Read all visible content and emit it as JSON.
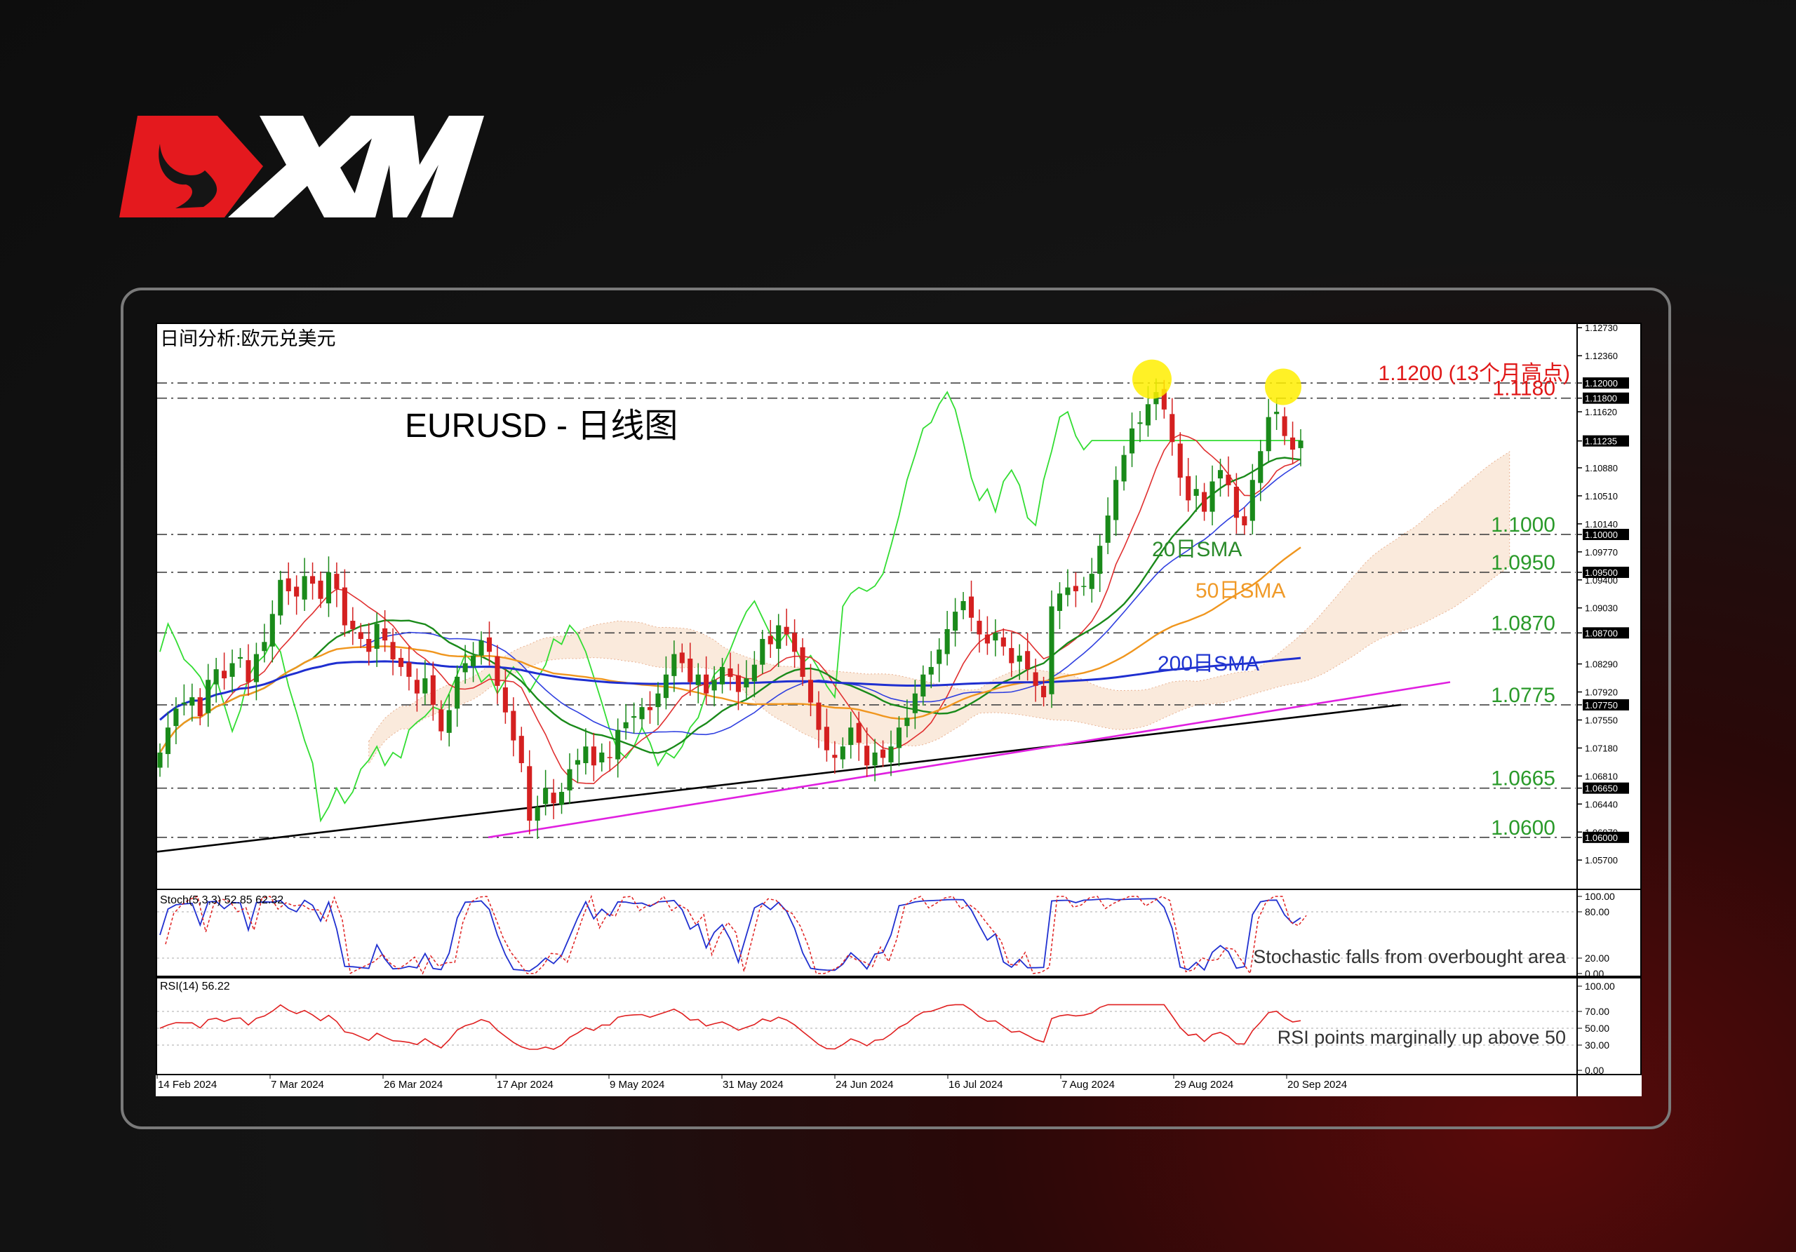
{
  "brand": {
    "name": "XM"
  },
  "chart_header": "日间分析:欧元兑美元",
  "chart_title": "EURUSD - 日线图",
  "colors": {
    "bull": "#1a8a1a",
    "bear": "#d42020",
    "sma20": "#1a8a1a",
    "sma50": "#f0961e",
    "sma200": "#1f2fd0",
    "tenkan": "#e03030",
    "kijun": "#3040e0",
    "chikou": "#33dd33",
    "trend_black": "#000000",
    "trend_magenta": "#e020e0",
    "highlight": "#ffee00"
  },
  "chart_data": [
    {
      "type": "candlestick",
      "symbol": "EURUSD",
      "timeframe": "Daily",
      "x_axis_ticks": [
        "14 Feb 2024",
        "7 Mar 2024",
        "26 Mar 2024",
        "17 Apr 2024",
        "9 May 2024",
        "31 May 2024",
        "24 Jun 2024",
        "16 Jul 2024",
        "7 Aug 2024",
        "29 Aug 2024",
        "20 Sep 2024"
      ],
      "y_axis_ticks": [
        "1.12730",
        "1.12360",
        "1.12000",
        "1.11800",
        "1.11620",
        "1.11235",
        "1.10880",
        "1.10510",
        "1.10140",
        "1.10000",
        "1.09770",
        "1.09500",
        "1.09400",
        "1.09030",
        "1.08700",
        "1.08290",
        "1.07920",
        "1.07750",
        "1.07550",
        "1.07180",
        "1.06810",
        "1.06650",
        "1.06440",
        "1.06070",
        "1.06000",
        "1.05700"
      ],
      "ylim": [
        1.0535,
        1.1276
      ],
      "levels": [
        {
          "value": 1.12,
          "label": "1.1200 (13个月高点)",
          "color": "#e01818"
        },
        {
          "value": 1.118,
          "label": "1.1180",
          "color": "#e01818"
        },
        {
          "value": 1.1,
          "label": "1.1000",
          "color": "#2a9a2a"
        },
        {
          "value": 1.095,
          "label": "1.0950",
          "color": "#2a9a2a"
        },
        {
          "value": 1.087,
          "label": "1.0870",
          "color": "#2a9a2a"
        },
        {
          "value": 1.0775,
          "label": "1.0775",
          "color": "#2a9a2a"
        },
        {
          "value": 1.0665,
          "label": "1.0665",
          "color": "#2a9a2a"
        },
        {
          "value": 1.06,
          "label": "1.0600",
          "color": "#2a9a2a"
        }
      ],
      "current_price": "1.11235",
      "indicator_labels": {
        "sma20": "20日SMA",
        "sma50": "50日SMA",
        "sma200": "200日SMA"
      },
      "closes": [
        1.0712,
        1.0745,
        1.077,
        1.0778,
        1.0785,
        1.076,
        1.0808,
        1.0822,
        1.081,
        1.083,
        1.0838,
        1.0805,
        1.0842,
        1.0858,
        1.0895,
        1.094,
        1.0925,
        1.0918,
        1.0945,
        1.0935,
        1.0915,
        1.095,
        1.0928,
        1.088,
        1.0875,
        1.0862,
        1.0845,
        1.0882,
        1.086,
        1.0835,
        1.0825,
        1.0812,
        1.079,
        1.081,
        1.0775,
        1.074,
        1.0768,
        1.0812,
        1.083,
        1.084,
        1.086,
        1.0845,
        1.08,
        1.0765,
        1.0728,
        1.0698,
        1.0622,
        1.064,
        1.0665,
        1.0645,
        1.066,
        1.069,
        1.0702,
        1.072,
        1.0695,
        1.0712,
        1.0705,
        1.0742,
        1.0752,
        1.076,
        1.0772,
        1.0768,
        1.079,
        1.0815,
        1.0842,
        1.083,
        1.0805,
        1.0815,
        1.079,
        1.0808,
        1.0825,
        1.0812,
        1.0792,
        1.081,
        1.0828,
        1.0862,
        1.0855,
        1.088,
        1.0868,
        1.0845,
        1.0812,
        1.0778,
        1.0742,
        1.0715,
        1.0705,
        1.072,
        1.0745,
        1.0725,
        1.0695,
        1.0712,
        1.0705,
        1.072,
        1.0745,
        1.0758,
        1.079,
        1.0815,
        1.0825,
        1.0848,
        1.0875,
        1.0898,
        1.0912,
        1.089,
        1.0868,
        1.0856,
        1.087,
        1.0852,
        1.083,
        1.084,
        1.0822,
        1.08,
        1.0785,
        1.0905,
        1.0922,
        1.093,
        1.0925,
        1.0932,
        1.0948,
        1.0985,
        1.1025,
        1.1072,
        1.1105,
        1.114,
        1.1148,
        1.1172,
        1.1188,
        1.1165,
        1.1122,
        1.1075,
        1.1045,
        1.106,
        1.103,
        1.107,
        1.1085,
        1.1065,
        1.1022,
        1.1012,
        1.1072,
        1.111,
        1.1155,
        1.1162,
        1.113,
        1.1112,
        1.1124
      ],
      "sub_charts": {
        "stochastic": {
          "label": "Stoch(5,3,3) 52.85 62.32",
          "ticks": [
            "100.00",
            "80.00",
            "20.00",
            "0.00"
          ],
          "ylim": [
            0,
            100
          ],
          "levels": [
            20,
            80
          ],
          "note": "Stochastic falls from overbought area"
        },
        "rsi": {
          "label": "RSI(14) 56.22",
          "ticks": [
            "100.00",
            "70.00",
            "50.00",
            "30.00",
            "0.00"
          ],
          "ylim": [
            0,
            100
          ],
          "levels": [
            30,
            50,
            70
          ],
          "note": "RSI points marginally up above 50"
        }
      }
    }
  ]
}
